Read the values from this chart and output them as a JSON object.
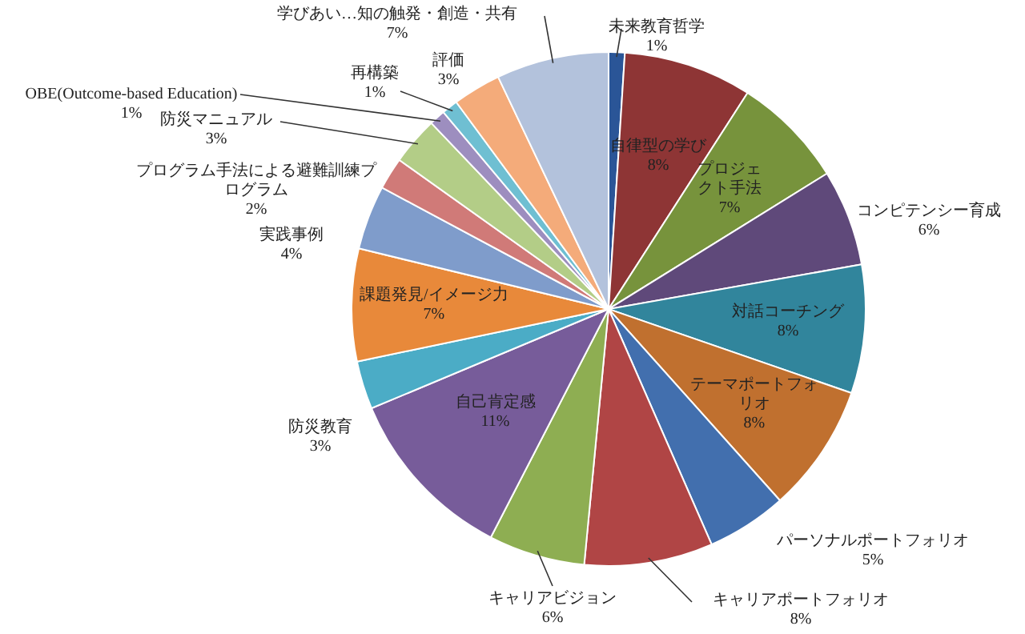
{
  "chart_data": {
    "type": "pie",
    "categories": [
      "未来教育哲学",
      "自律型の学び",
      "プロジェクト手法",
      "コンピテンシー育成",
      "対話コーチング",
      "テーマポートフォリオ",
      "パーソナルポートフォリオ",
      "キャリアポートフォリオ",
      "キャリアビジョン",
      "自己肯定感",
      "防災教育",
      "課題発見/イメージ力",
      "実践事例",
      "プログラム手法による避難訓練プログラム",
      "防災マニュアル",
      "OBE(Outcome-based Education)",
      "再構築",
      "評価",
      "学びあい…知の触発・創造・共有"
    ],
    "values": [
      1,
      8,
      7,
      6,
      8,
      8,
      5,
      8,
      6,
      11,
      3,
      7,
      4,
      2,
      3,
      1,
      1,
      3,
      7
    ],
    "value_labels": [
      "1%",
      "8%",
      "7%",
      "6%",
      "8%",
      "8%",
      "5%",
      "8%",
      "6%",
      "11%",
      "3%",
      "7%",
      "4%",
      "2%",
      "3%",
      "1%",
      "1%",
      "3%",
      "7%"
    ],
    "colors": [
      "#2a5597",
      "#8e3535",
      "#77933c",
      "#5f497a",
      "#31859c",
      "#c0702f",
      "#426fae",
      "#b04545",
      "#8eae52",
      "#775c9a",
      "#4bacc6",
      "#e8893a",
      "#7f9ccb",
      "#d07a78",
      "#b3cd87",
      "#9d8ebf",
      "#6fbfd2",
      "#f4ab7a",
      "#b3c2dc"
    ],
    "legend": false
  }
}
